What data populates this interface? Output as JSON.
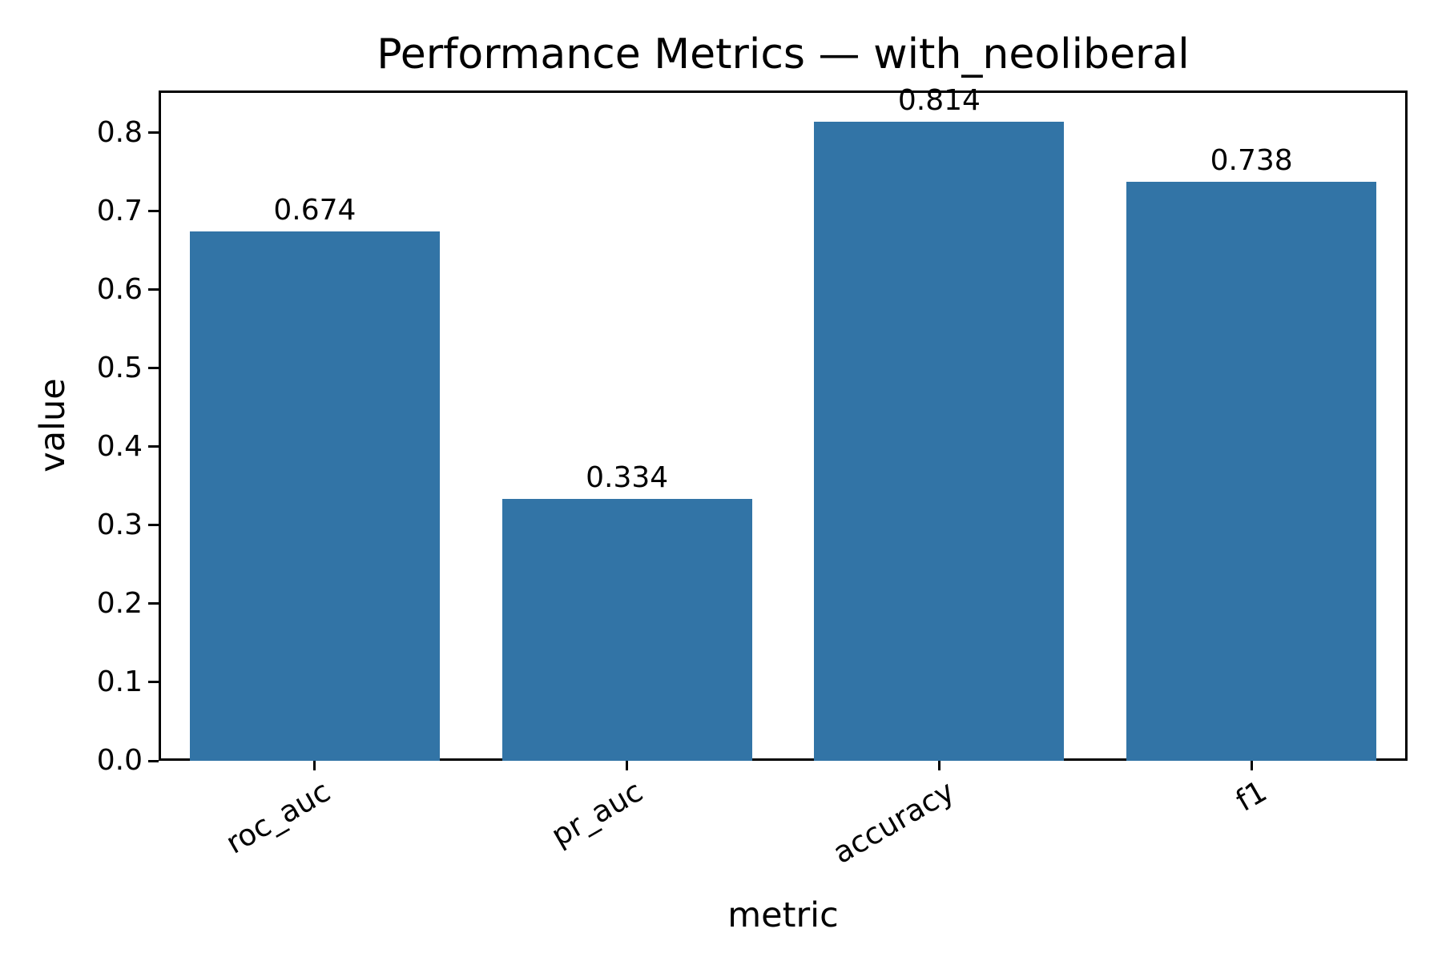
{
  "chart_data": {
    "type": "bar",
    "title": "Performance Metrics — with_neoliberal",
    "xlabel": "metric",
    "ylabel": "value",
    "categories": [
      "roc_auc",
      "pr_auc",
      "accuracy",
      "f1"
    ],
    "values": [
      0.674,
      0.334,
      0.814,
      0.738
    ],
    "bar_labels": [
      "0.674",
      "0.334",
      "0.814",
      "0.738"
    ],
    "ylim": [
      0,
      0.854
    ],
    "yticks": [
      0.0,
      0.1,
      0.2,
      0.3,
      0.4,
      0.5,
      0.6,
      0.7,
      0.8
    ],
    "ytick_labels": [
      "0.0",
      "0.1",
      "0.2",
      "0.3",
      "0.4",
      "0.5",
      "0.6",
      "0.7",
      "0.8"
    ],
    "bar_color": "#3274A6",
    "bar_width_fraction": 0.8,
    "xtick_rotation_deg": 30,
    "grid": false,
    "legend": false
  }
}
